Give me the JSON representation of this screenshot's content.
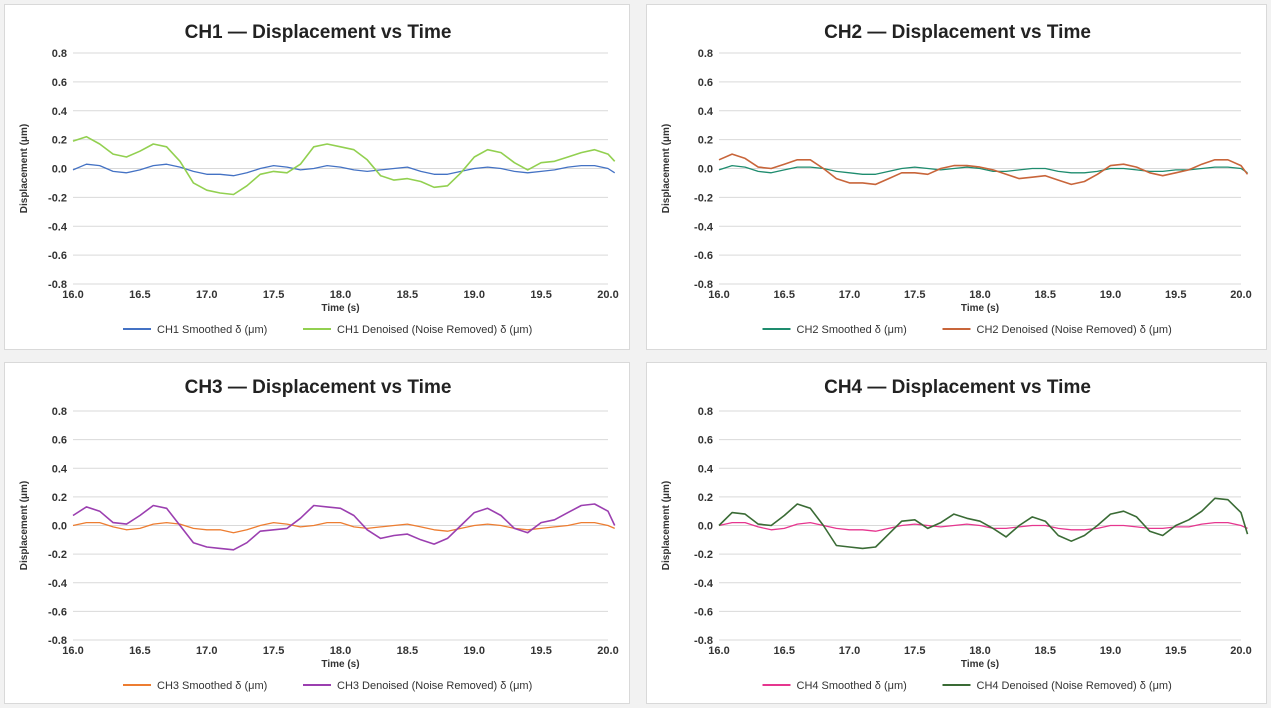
{
  "chart_data": [
    {
      "type": "line",
      "title": "CH1  —  Displacement vs Time",
      "xlabel": "Time (s)",
      "ylabel": "Displacement (μm)",
      "xlim": [
        16.0,
        20.0
      ],
      "ylim": [
        -0.8,
        0.8
      ],
      "xticks": [
        16.0,
        16.5,
        17.0,
        17.5,
        18.0,
        18.5,
        19.0,
        19.5,
        20.0
      ],
      "yticks": [
        0.8,
        0.6,
        0.4,
        0.2,
        0.0,
        -0.2,
        -0.4,
        -0.6,
        -0.8
      ],
      "grid": true,
      "legend": "bottom",
      "series": [
        {
          "name": "CH1 Smoothed δ (μm)",
          "color": "#4472c4",
          "x": [
            16.0,
            16.1,
            16.2,
            16.3,
            16.4,
            16.5,
            16.6,
            16.7,
            16.8,
            16.9,
            17.0,
            17.1,
            17.2,
            17.3,
            17.4,
            17.5,
            17.6,
            17.7,
            17.8,
            17.9,
            18.0,
            18.1,
            18.2,
            18.3,
            18.4,
            18.5,
            18.6,
            18.7,
            18.8,
            18.9,
            19.0,
            19.1,
            19.2,
            19.3,
            19.4,
            19.5,
            19.6,
            19.7,
            19.8,
            19.9,
            20.0,
            20.05
          ],
          "y": [
            -0.01,
            0.03,
            0.02,
            -0.02,
            -0.03,
            -0.01,
            0.02,
            0.03,
            0.01,
            -0.02,
            -0.04,
            -0.04,
            -0.05,
            -0.03,
            0.0,
            0.02,
            0.01,
            -0.01,
            0.0,
            0.02,
            0.01,
            -0.01,
            -0.02,
            -0.01,
            0.0,
            0.01,
            -0.02,
            -0.04,
            -0.04,
            -0.02,
            0.0,
            0.01,
            0.0,
            -0.02,
            -0.03,
            -0.02,
            -0.01,
            0.01,
            0.02,
            0.02,
            0.0,
            -0.03
          ]
        },
        {
          "name": "CH1 Denoised (Noise Removed) δ (μm)",
          "color": "#92d050",
          "x": [
            16.0,
            16.1,
            16.2,
            16.3,
            16.4,
            16.5,
            16.6,
            16.7,
            16.8,
            16.9,
            17.0,
            17.1,
            17.2,
            17.3,
            17.4,
            17.5,
            17.6,
            17.7,
            17.8,
            17.9,
            18.0,
            18.1,
            18.2,
            18.3,
            18.4,
            18.5,
            18.6,
            18.7,
            18.8,
            18.9,
            19.0,
            19.1,
            19.2,
            19.3,
            19.4,
            19.5,
            19.6,
            19.7,
            19.8,
            19.9,
            20.0,
            20.05
          ],
          "y": [
            0.19,
            0.22,
            0.17,
            0.1,
            0.08,
            0.12,
            0.17,
            0.15,
            0.05,
            -0.1,
            -0.15,
            -0.17,
            -0.18,
            -0.12,
            -0.04,
            -0.02,
            -0.03,
            0.03,
            0.15,
            0.17,
            0.15,
            0.13,
            0.06,
            -0.05,
            -0.08,
            -0.07,
            -0.09,
            -0.13,
            -0.12,
            -0.03,
            0.08,
            0.13,
            0.11,
            0.04,
            -0.01,
            0.04,
            0.05,
            0.08,
            0.11,
            0.13,
            0.1,
            0.05
          ]
        }
      ]
    },
    {
      "type": "line",
      "title": "CH2  —  Displacement vs Time",
      "xlabel": "Time (s)",
      "ylabel": "Displacement (μm)",
      "xlim": [
        16.0,
        20.0
      ],
      "ylim": [
        -0.8,
        0.8
      ],
      "xticks": [
        16.0,
        16.5,
        17.0,
        17.5,
        18.0,
        18.5,
        19.0,
        19.5,
        20.0
      ],
      "yticks": [
        0.8,
        0.6,
        0.4,
        0.2,
        0.0,
        -0.2,
        -0.4,
        -0.6,
        -0.8
      ],
      "grid": true,
      "legend": "bottom",
      "series": [
        {
          "name": "CH2 Smoothed δ (μm)",
          "color": "#1e8c6e",
          "x": [
            16.0,
            16.1,
            16.2,
            16.3,
            16.4,
            16.5,
            16.6,
            16.7,
            16.8,
            16.9,
            17.0,
            17.1,
            17.2,
            17.3,
            17.4,
            17.5,
            17.6,
            17.7,
            17.8,
            17.9,
            18.0,
            18.1,
            18.2,
            18.3,
            18.4,
            18.5,
            18.6,
            18.7,
            18.8,
            18.9,
            19.0,
            19.1,
            19.2,
            19.3,
            19.4,
            19.5,
            19.6,
            19.7,
            19.8,
            19.9,
            20.0,
            20.05
          ],
          "y": [
            -0.01,
            0.02,
            0.01,
            -0.02,
            -0.03,
            -0.01,
            0.01,
            0.01,
            0.0,
            -0.02,
            -0.03,
            -0.04,
            -0.04,
            -0.02,
            0.0,
            0.01,
            0.0,
            -0.01,
            0.0,
            0.01,
            0.0,
            -0.02,
            -0.02,
            -0.01,
            0.0,
            0.0,
            -0.02,
            -0.03,
            -0.03,
            -0.02,
            0.0,
            0.0,
            -0.01,
            -0.02,
            -0.02,
            -0.01,
            -0.01,
            0.0,
            0.01,
            0.01,
            0.0,
            -0.03
          ]
        },
        {
          "name": "CH2 Denoised (Noise Removed) δ (μm)",
          "color": "#c8653a",
          "x": [
            16.0,
            16.1,
            16.2,
            16.3,
            16.4,
            16.5,
            16.6,
            16.7,
            16.8,
            16.9,
            17.0,
            17.1,
            17.2,
            17.3,
            17.4,
            17.5,
            17.6,
            17.7,
            17.8,
            17.9,
            18.0,
            18.1,
            18.2,
            18.3,
            18.4,
            18.5,
            18.6,
            18.7,
            18.8,
            18.9,
            19.0,
            19.1,
            19.2,
            19.3,
            19.4,
            19.5,
            19.6,
            19.7,
            19.8,
            19.9,
            20.0,
            20.05
          ],
          "y": [
            0.06,
            0.1,
            0.07,
            0.01,
            0.0,
            0.03,
            0.06,
            0.06,
            0.0,
            -0.07,
            -0.1,
            -0.1,
            -0.11,
            -0.07,
            -0.03,
            -0.03,
            -0.04,
            0.0,
            0.02,
            0.02,
            0.01,
            -0.01,
            -0.04,
            -0.07,
            -0.06,
            -0.05,
            -0.08,
            -0.11,
            -0.09,
            -0.04,
            0.02,
            0.03,
            0.01,
            -0.03,
            -0.05,
            -0.03,
            -0.01,
            0.03,
            0.06,
            0.06,
            0.02,
            -0.04
          ]
        }
      ]
    },
    {
      "type": "line",
      "title": "CH3  —  Displacement vs Time",
      "xlabel": "Time (s)",
      "ylabel": "Displacement (μm)",
      "xlim": [
        16.0,
        20.0
      ],
      "ylim": [
        -0.8,
        0.8
      ],
      "xticks": [
        16.0,
        16.5,
        17.0,
        17.5,
        18.0,
        18.5,
        19.0,
        19.5,
        20.0
      ],
      "yticks": [
        0.8,
        0.6,
        0.4,
        0.2,
        0.0,
        -0.2,
        -0.4,
        -0.6,
        -0.8
      ],
      "grid": true,
      "legend": "bottom",
      "series": [
        {
          "name": "CH3 Smoothed δ (μm)",
          "color": "#ed7d31",
          "x": [
            16.0,
            16.1,
            16.2,
            16.3,
            16.4,
            16.5,
            16.6,
            16.7,
            16.8,
            16.9,
            17.0,
            17.1,
            17.2,
            17.3,
            17.4,
            17.5,
            17.6,
            17.7,
            17.8,
            17.9,
            18.0,
            18.1,
            18.2,
            18.3,
            18.4,
            18.5,
            18.6,
            18.7,
            18.8,
            18.9,
            19.0,
            19.1,
            19.2,
            19.3,
            19.4,
            19.5,
            19.6,
            19.7,
            19.8,
            19.9,
            20.0,
            20.05
          ],
          "y": [
            0.0,
            0.02,
            0.02,
            -0.01,
            -0.03,
            -0.02,
            0.01,
            0.02,
            0.01,
            -0.02,
            -0.03,
            -0.03,
            -0.05,
            -0.03,
            0.0,
            0.02,
            0.01,
            -0.01,
            0.0,
            0.02,
            0.02,
            -0.01,
            -0.02,
            -0.01,
            0.0,
            0.01,
            -0.01,
            -0.03,
            -0.04,
            -0.02,
            0.0,
            0.01,
            0.0,
            -0.02,
            -0.03,
            -0.02,
            -0.01,
            0.0,
            0.02,
            0.02,
            0.0,
            -0.02
          ]
        },
        {
          "name": "CH3 Denoised (Noise Removed) δ (μm)",
          "color": "#9b3fb0",
          "x": [
            16.0,
            16.1,
            16.2,
            16.3,
            16.4,
            16.5,
            16.6,
            16.7,
            16.8,
            16.9,
            17.0,
            17.1,
            17.2,
            17.3,
            17.4,
            17.5,
            17.6,
            17.7,
            17.8,
            17.9,
            18.0,
            18.1,
            18.2,
            18.3,
            18.4,
            18.5,
            18.6,
            18.7,
            18.8,
            18.9,
            19.0,
            19.1,
            19.2,
            19.3,
            19.4,
            19.5,
            19.6,
            19.7,
            19.8,
            19.9,
            20.0,
            20.05
          ],
          "y": [
            0.07,
            0.13,
            0.1,
            0.02,
            0.01,
            0.07,
            0.14,
            0.12,
            0.0,
            -0.12,
            -0.15,
            -0.16,
            -0.17,
            -0.12,
            -0.04,
            -0.03,
            -0.02,
            0.05,
            0.14,
            0.13,
            0.12,
            0.07,
            -0.03,
            -0.09,
            -0.07,
            -0.06,
            -0.1,
            -0.13,
            -0.09,
            0.0,
            0.09,
            0.12,
            0.07,
            -0.02,
            -0.05,
            0.02,
            0.04,
            0.09,
            0.14,
            0.15,
            0.1,
            0.0
          ]
        }
      ]
    },
    {
      "type": "line",
      "title": "CH4  —  Displacement vs Time",
      "xlabel": "Time (s)",
      "ylabel": "Displacement (μm)",
      "xlim": [
        16.0,
        20.0
      ],
      "ylim": [
        -0.8,
        0.8
      ],
      "xticks": [
        16.0,
        16.5,
        17.0,
        17.5,
        18.0,
        18.5,
        19.0,
        19.5,
        20.0
      ],
      "yticks": [
        0.8,
        0.6,
        0.4,
        0.2,
        0.0,
        -0.2,
        -0.4,
        -0.6,
        -0.8
      ],
      "grid": true,
      "legend": "bottom",
      "series": [
        {
          "name": "CH4 Smoothed δ (μm)",
          "color": "#e6368f",
          "x": [
            16.0,
            16.1,
            16.2,
            16.3,
            16.4,
            16.5,
            16.6,
            16.7,
            16.8,
            16.9,
            17.0,
            17.1,
            17.2,
            17.3,
            17.4,
            17.5,
            17.6,
            17.7,
            17.8,
            17.9,
            18.0,
            18.1,
            18.2,
            18.3,
            18.4,
            18.5,
            18.6,
            18.7,
            18.8,
            18.9,
            19.0,
            19.1,
            19.2,
            19.3,
            19.4,
            19.5,
            19.6,
            19.7,
            19.8,
            19.9,
            20.0,
            20.05
          ],
          "y": [
            0.0,
            0.02,
            0.02,
            -0.01,
            -0.03,
            -0.02,
            0.01,
            0.02,
            0.0,
            -0.02,
            -0.03,
            -0.03,
            -0.04,
            -0.02,
            0.0,
            0.01,
            0.0,
            -0.01,
            0.0,
            0.01,
            0.0,
            -0.02,
            -0.02,
            -0.01,
            0.0,
            0.0,
            -0.02,
            -0.03,
            -0.03,
            -0.02,
            0.0,
            0.0,
            -0.01,
            -0.02,
            -0.02,
            -0.01,
            -0.01,
            0.01,
            0.02,
            0.02,
            0.0,
            -0.02
          ]
        },
        {
          "name": "CH4 Denoised (Noise Removed) δ (μm)",
          "color": "#3a6b35",
          "x": [
            16.0,
            16.1,
            16.2,
            16.3,
            16.4,
            16.5,
            16.6,
            16.7,
            16.8,
            16.9,
            17.0,
            17.1,
            17.2,
            17.3,
            17.4,
            17.5,
            17.6,
            17.7,
            17.8,
            17.9,
            18.0,
            18.1,
            18.2,
            18.3,
            18.4,
            18.5,
            18.6,
            18.7,
            18.8,
            18.9,
            19.0,
            19.1,
            19.2,
            19.3,
            19.4,
            19.5,
            19.6,
            19.7,
            19.8,
            19.9,
            20.0,
            20.05
          ],
          "y": [
            0.0,
            0.09,
            0.08,
            0.01,
            0.0,
            0.07,
            0.15,
            0.12,
            0.0,
            -0.14,
            -0.15,
            -0.16,
            -0.15,
            -0.06,
            0.03,
            0.04,
            -0.02,
            0.02,
            0.08,
            0.05,
            0.03,
            -0.02,
            -0.08,
            0.0,
            0.06,
            0.03,
            -0.07,
            -0.11,
            -0.07,
            0.0,
            0.08,
            0.1,
            0.06,
            -0.04,
            -0.07,
            0.0,
            0.04,
            0.1,
            0.19,
            0.18,
            0.09,
            -0.06
          ]
        }
      ]
    }
  ]
}
